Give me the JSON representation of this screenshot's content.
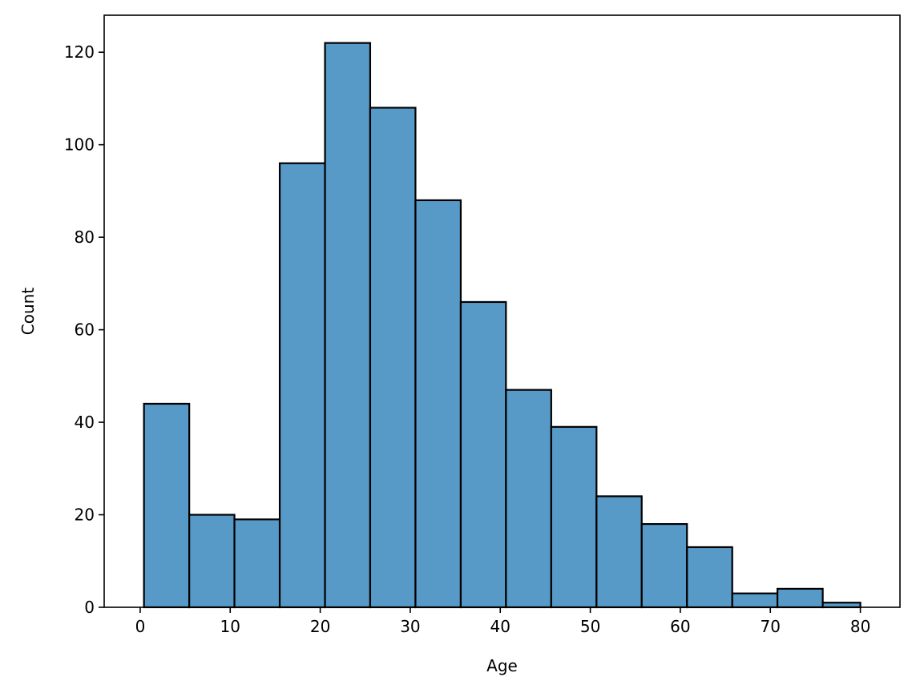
{
  "chart_data": {
    "type": "bar",
    "subtype": "histogram",
    "title": "",
    "xlabel": "Age",
    "ylabel": "Count",
    "bin_edges": [
      0.42,
      5.45,
      10.47,
      15.5,
      20.53,
      25.55,
      30.58,
      35.61,
      40.63,
      45.66,
      50.69,
      55.71,
      60.74,
      65.77,
      70.79,
      75.82,
      80.0
    ],
    "values": [
      44,
      20,
      19,
      96,
      122,
      108,
      88,
      66,
      47,
      39,
      24,
      18,
      13,
      3,
      4,
      1
    ],
    "xlim": [
      -4.0,
      84.4
    ],
    "ylim": [
      0,
      128
    ],
    "xticks": [
      0,
      10,
      20,
      30,
      40,
      50,
      60,
      70,
      80
    ],
    "yticks": [
      0,
      20,
      40,
      60,
      80,
      100,
      120
    ],
    "bar_color": "#5799c7",
    "edge_color": "#000000",
    "grid": false,
    "legend": "none"
  }
}
